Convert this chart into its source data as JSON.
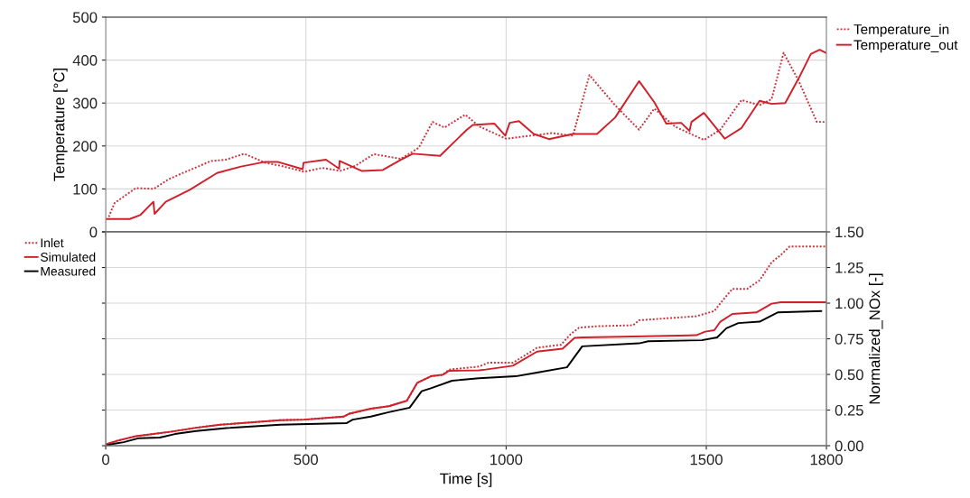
{
  "chart_data": [
    {
      "type": "line",
      "ylabel": "Temperature [°C]",
      "xlim": [
        0,
        1800
      ],
      "xticks": [
        0,
        500,
        1000,
        1500,
        1800
      ],
      "ylim": [
        0,
        500
      ],
      "yticks": [
        0,
        100,
        200,
        300,
        400,
        500
      ],
      "grid": true,
      "legend": "top right",
      "tick_labels": "y",
      "series": [
        {
          "name": "Temperature_in",
          "color": "#c8323c",
          "line_style": "dotted",
          "x": [
            7.5,
            22,
            75,
            120,
            158,
            210,
            263,
            300,
            346,
            398,
            436,
            496,
            541,
            586,
            624,
            669,
            737,
            782,
            816,
            846,
            898,
            934,
            1000,
            1062,
            1114,
            1167,
            1208,
            1272,
            1332,
            1370,
            1422,
            1494,
            1535,
            1588,
            1633,
            1663,
            1693,
            1731,
            1776,
            1795
          ],
          "values": [
            35,
            67,
            102,
            100,
            123,
            144,
            165,
            168,
            182,
            161,
            154,
            140,
            149,
            142,
            154,
            181,
            170,
            196,
            256,
            243,
            273,
            245,
            217,
            224,
            230,
            224,
            365,
            295,
            238,
            287,
            245,
            214,
            238,
            307,
            295,
            309,
            417,
            351,
            256,
            256
          ]
        },
        {
          "name": "Temperature_out",
          "color": "#d0202a",
          "line_style": "solid",
          "x": [
            0,
            60,
            86,
            119,
            122,
            150,
            210,
            278,
            338,
            398,
            429,
            492,
            494,
            550,
            583,
            584,
            639,
            692,
            737,
            767,
            835,
            902,
            917,
            971,
            998,
            1009,
            1032,
            1069,
            1107,
            1167,
            1227,
            1272,
            1332,
            1370,
            1400,
            1437,
            1458,
            1463,
            1494,
            1546,
            1588,
            1633,
            1663,
            1697,
            1731,
            1761,
            1783,
            1798
          ],
          "values": [
            30,
            30,
            39,
            70,
            42,
            70,
            98,
            137,
            152,
            163,
            163,
            146,
            161,
            168,
            147,
            165,
            142,
            144,
            168,
            182,
            177,
            238,
            249,
            252,
            224,
            254,
            258,
            228,
            216,
            228,
            228,
            266,
            351,
            302,
            252,
            254,
            235,
            256,
            277,
            217,
            242,
            305,
            298,
            300,
            358,
            414,
            424,
            417
          ]
        }
      ]
    },
    {
      "type": "line",
      "xlabel": "Time [s]",
      "y2label": "Normalized_NOx [-]",
      "xlim": [
        0,
        1800
      ],
      "xticks": [
        0,
        500,
        1000,
        1500,
        1800
      ],
      "y2lim": [
        0,
        1.5
      ],
      "y2ticks": [
        {
          "value": 0,
          "label": "0.00"
        },
        {
          "value": 0.25,
          "label": "0.25"
        },
        {
          "value": 0.5,
          "label": "0.50"
        },
        {
          "value": 0.75,
          "label": "0.75"
        },
        {
          "value": 1,
          "label": "1.00"
        },
        {
          "value": 1.25,
          "label": "1.25"
        },
        {
          "value": 1.5,
          "label": "1.50"
        }
      ],
      "grid": true,
      "legend": "top left",
      "series": [
        {
          "name": "Inlet",
          "axis": "y2",
          "color": "#c8323c",
          "line_style": "dotted",
          "x": [
            0,
            30,
            75,
            165,
            226,
            286,
            436,
            496,
            594,
            609,
            662,
            707,
            752,
            778,
            812,
            842,
            857,
            932,
            956,
            1017,
            1062,
            1077,
            1137,
            1160,
            1182,
            1227,
            1317,
            1332,
            1475,
            1520,
            1542,
            1565,
            1602,
            1633,
            1663,
            1686,
            1708,
            1798
          ],
          "values": [
            0.01,
            0.036,
            0.067,
            0.099,
            0.126,
            0.147,
            0.179,
            0.183,
            0.204,
            0.225,
            0.26,
            0.277,
            0.315,
            0.441,
            0.487,
            0.498,
            0.534,
            0.555,
            0.582,
            0.582,
            0.66,
            0.687,
            0.708,
            0.78,
            0.828,
            0.838,
            0.845,
            0.88,
            0.908,
            0.945,
            1.023,
            1.1,
            1.1,
            1.16,
            1.286,
            1.338,
            1.397,
            1.397
          ]
        },
        {
          "name": "Simulated",
          "axis": "y2",
          "color": "#d0202a",
          "line_style": "solid",
          "x": [
            0,
            30,
            75,
            165,
            226,
            286,
            436,
            496,
            594,
            609,
            662,
            707,
            752,
            778,
            812,
            842,
            857,
            932,
            949,
            1017,
            1077,
            1141,
            1171,
            1190,
            1287,
            1475,
            1497,
            1520,
            1535,
            1565,
            1625,
            1663,
            1686,
            1798
          ],
          "values": [
            0.01,
            0.036,
            0.067,
            0.099,
            0.126,
            0.147,
            0.179,
            0.183,
            0.204,
            0.225,
            0.26,
            0.277,
            0.315,
            0.441,
            0.487,
            0.498,
            0.525,
            0.529,
            0.534,
            0.561,
            0.66,
            0.68,
            0.756,
            0.76,
            0.765,
            0.775,
            0.8,
            0.81,
            0.87,
            0.924,
            0.935,
            0.996,
            1.006,
            1.006
          ]
        },
        {
          "name": "Measured",
          "axis": "y2",
          "color": "#000000",
          "line_style": "solid",
          "x": [
            0,
            22,
            45,
            83,
            135,
            173,
            226,
            301,
            436,
            601,
            617,
            662,
            707,
            759,
            789,
            812,
            865,
            932,
            1024,
            1077,
            1152,
            1190,
            1332,
            1355,
            1489,
            1527,
            1550,
            1580,
            1633,
            1678,
            1787
          ],
          "values": [
            0,
            0.015,
            0.025,
            0.053,
            0.057,
            0.082,
            0.103,
            0.124,
            0.147,
            0.158,
            0.183,
            0.204,
            0.235,
            0.267,
            0.382,
            0.403,
            0.456,
            0.473,
            0.487,
            0.513,
            0.55,
            0.697,
            0.718,
            0.733,
            0.74,
            0.76,
            0.824,
            0.86,
            0.87,
            0.935,
            0.945
          ]
        }
      ]
    }
  ]
}
